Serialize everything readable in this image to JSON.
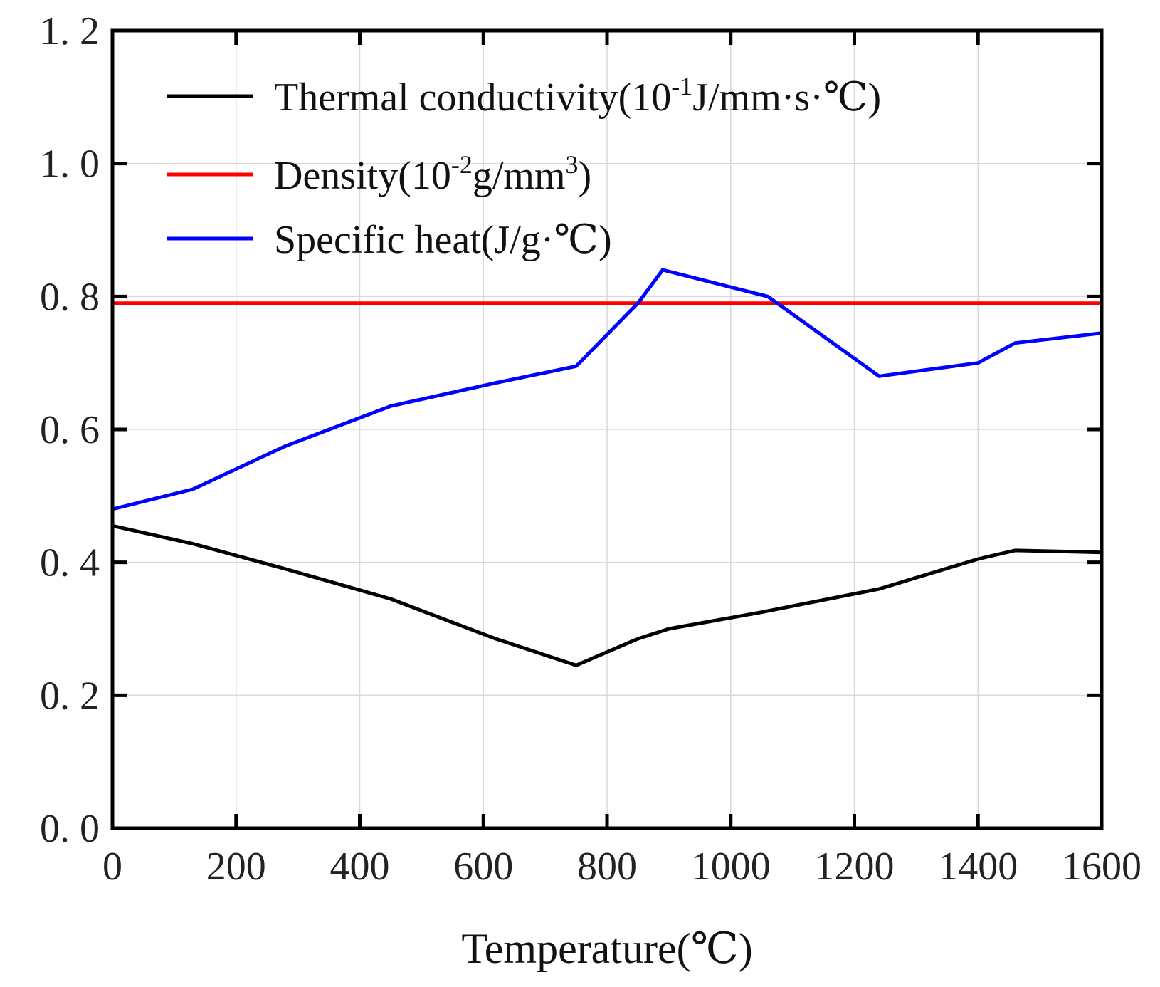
{
  "chart_data": {
    "type": "line",
    "title": "",
    "xlabel": "Temperature(℃)",
    "ylabel": "",
    "xlim": [
      0,
      1600
    ],
    "ylim": [
      0,
      1.2
    ],
    "xticks": [
      0,
      200,
      400,
      600,
      800,
      1000,
      1200,
      1400,
      1600
    ],
    "yticks": [
      0.0,
      0.2,
      0.4,
      0.6,
      0.8,
      1.0,
      1.2
    ],
    "xtick_labels": [
      "0",
      "200",
      "400",
      "600",
      "800",
      "1000",
      "1200",
      "1400",
      "1600"
    ],
    "ytick_labels": [
      "0. 0",
      "0. 2",
      "0. 4",
      "0. 6",
      "0. 8",
      "1. 0",
      "1. 2"
    ],
    "grid": true,
    "legend_position": "top-left",
    "series": [
      {
        "name": "Thermal conductivity(10⁻¹J/mm·s·℃)",
        "legend": {
          "prefix": "Thermal conductivity(10",
          "sup": "-1",
          "suffix": "J/mm·s·℃)"
        },
        "color": "#000000",
        "x": [
          0,
          130,
          280,
          450,
          620,
          750,
          850,
          900,
          1050,
          1240,
          1400,
          1460,
          1600
        ],
        "y": [
          0.455,
          0.428,
          0.39,
          0.345,
          0.285,
          0.245,
          0.285,
          0.3,
          0.325,
          0.36,
          0.405,
          0.418,
          0.415
        ]
      },
      {
        "name": "Density(10⁻²g/mm³)",
        "legend": {
          "prefix": "Density(10",
          "sup": "-2",
          "middle": "g/mm",
          "sup2": "3",
          "suffix": ")"
        },
        "color": "#ff0000",
        "x": [
          0,
          1600
        ],
        "y": [
          0.79,
          0.79
        ]
      },
      {
        "name": "Specific heat(J/g·℃)",
        "legend": {
          "prefix": "Specific heat(J/g·℃)"
        },
        "color": "#0000ff",
        "x": [
          0,
          130,
          280,
          450,
          620,
          750,
          850,
          890,
          1060,
          1240,
          1400,
          1460,
          1600
        ],
        "y": [
          0.48,
          0.51,
          0.575,
          0.635,
          0.67,
          0.695,
          0.79,
          0.84,
          0.8,
          0.68,
          0.7,
          0.73,
          0.745
        ]
      }
    ]
  }
}
